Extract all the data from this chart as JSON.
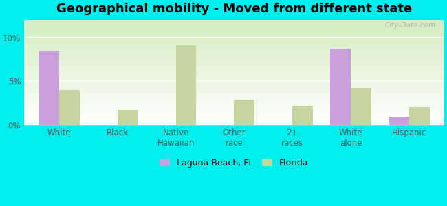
{
  "title": "Geographical mobility - Moved from different state",
  "categories": [
    "White",
    "Black",
    "Native\nHawaiian",
    "Other\nrace",
    "2+\nraces",
    "White\nalone",
    "Hispanic"
  ],
  "laguna_values": [
    8.5,
    0.0,
    0.0,
    0.0,
    0.0,
    8.7,
    0.9
  ],
  "florida_values": [
    4.0,
    1.7,
    9.1,
    2.9,
    2.2,
    4.2,
    2.0
  ],
  "laguna_color": "#c9a0dc",
  "florida_color": "#c8d4a0",
  "background_color": "#00eeee",
  "ylim": [
    0,
    12
  ],
  "yticks": [
    0,
    5,
    10
  ],
  "ytick_labels": [
    "0%",
    "5%",
    "10%"
  ],
  "bar_width": 0.35,
  "title_fontsize": 13,
  "tick_fontsize": 8.5,
  "legend_label_laguna": "Laguna Beach, FL",
  "legend_label_florida": "Florida",
  "watermark": "City-Data.com"
}
